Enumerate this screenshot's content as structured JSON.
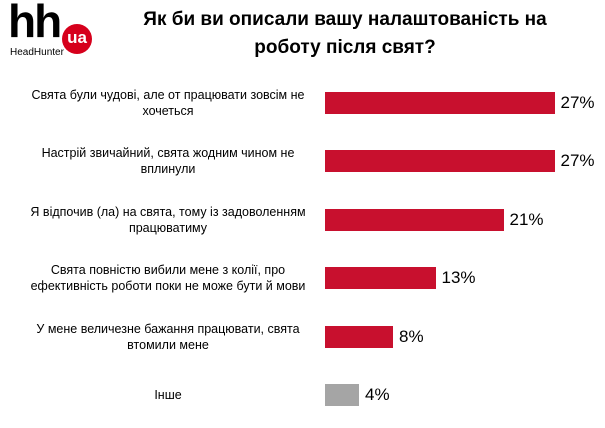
{
  "logo": {
    "mark": "hh",
    "badge": "ua",
    "name": "HeadHunter"
  },
  "chart_data": {
    "type": "bar",
    "orientation": "horizontal",
    "title": "Як би ви описали вашу налаштованість на роботу після свят?",
    "categories": [
      "Свята були чудові, але от працювати зовсім не хочеться",
      "Настрій звичайний, свята жодним чином не вплинули",
      "Я відпочив (ла) на свята, тому із задоволенням працюватиму",
      "Свята повністю вибили мене з колії, про ефективність роботи поки не може бути й мови",
      "У мене величезне бажання працювати, свята втомили мене",
      "Інше"
    ],
    "values": [
      27,
      27,
      21,
      13,
      8,
      4
    ],
    "value_labels": [
      "27%",
      "27%",
      "21%",
      "13%",
      "8%",
      "4%"
    ],
    "colors": [
      "#c8102e",
      "#c8102e",
      "#c8102e",
      "#c8102e",
      "#c8102e",
      "#a5a5a5"
    ]
  }
}
